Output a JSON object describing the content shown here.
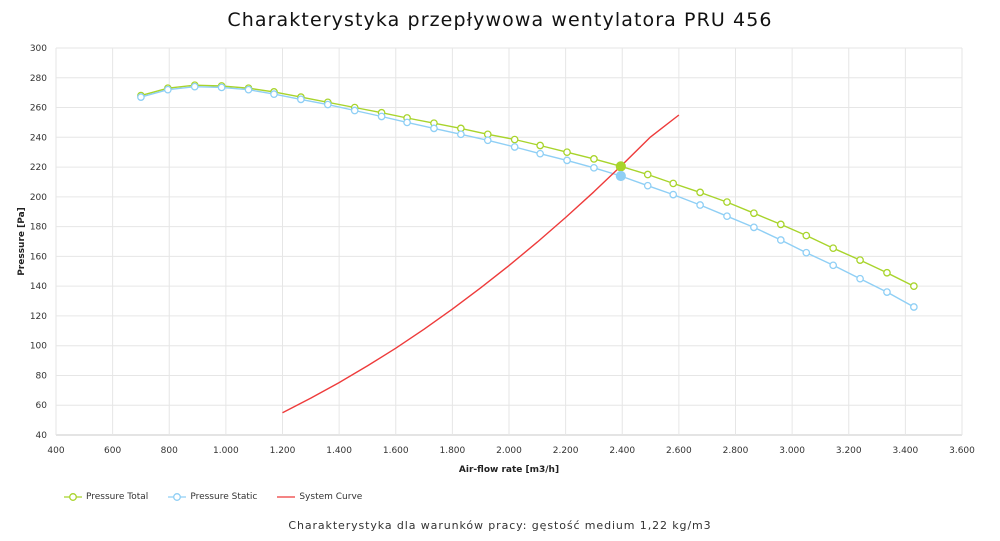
{
  "chart_data": {
    "type": "line",
    "title": "Charakterystyka przepływowa wentylatora PRU 456",
    "subtitle": "Charakterystyka dla warunków pracy: gęstość medium 1,22 kg/m3",
    "xlabel": "Air-flow rate [m3/h]",
    "ylabel": "Pressure [Pa]",
    "xlim": [
      400,
      3600
    ],
    "ylim": [
      40,
      300
    ],
    "grid": true,
    "legend_position": "bottom-left",
    "x_ticks": [
      400,
      600,
      800,
      1000,
      1200,
      1400,
      1600,
      1800,
      2000,
      2200,
      2400,
      2600,
      2800,
      3000,
      3200,
      3400,
      3600
    ],
    "x_tick_labels": [
      "400",
      "600",
      "800",
      "1.000",
      "1.200",
      "1.400",
      "1.600",
      "1.800",
      "2.000",
      "2.200",
      "2.400",
      "2.600",
      "2.800",
      "3.000",
      "3.200",
      "3.400",
      "3.600"
    ],
    "y_ticks": [
      40,
      60,
      80,
      100,
      120,
      140,
      160,
      180,
      200,
      220,
      240,
      260,
      280,
      300
    ],
    "y_tick_labels": [
      "40",
      "60",
      "80",
      "100",
      "120",
      "140",
      "160",
      "180",
      "200",
      "220",
      "240",
      "260",
      "280",
      "300"
    ],
    "x": [
      700,
      795,
      890,
      985,
      1080,
      1170,
      1265,
      1360,
      1455,
      1550,
      1640,
      1735,
      1830,
      1925,
      2020,
      2110,
      2205,
      2300,
      2395,
      2490,
      2580,
      2675,
      2770,
      2865,
      2960,
      3050,
      3145,
      3240,
      3335,
      3430
    ],
    "series": [
      {
        "name": "Pressure Total",
        "color": "#a8d42b",
        "values": [
          268,
          273,
          275,
          274.5,
          273,
          270.5,
          267,
          263.5,
          260,
          256.5,
          253,
          249.5,
          246,
          242,
          238.5,
          234.5,
          230,
          225.5,
          220.5,
          215,
          209,
          203,
          196.5,
          189,
          181.5,
          174,
          165.5,
          157.5,
          149,
          140
        ]
      },
      {
        "name": "Pressure Static",
        "color": "#8fcff5",
        "values": [
          267,
          272,
          274,
          273.5,
          272,
          269,
          265.5,
          262,
          258,
          254,
          250,
          246,
          242,
          238,
          233.5,
          229,
          224.5,
          219.5,
          214,
          207.5,
          201.5,
          194.5,
          187,
          179.5,
          171,
          162.5,
          154,
          145,
          136,
          126
        ]
      },
      {
        "name": "System Curve",
        "color": "#ee3b3b",
        "x": [
          1200,
          1300,
          1400,
          1500,
          1600,
          1700,
          1800,
          1900,
          2000,
          2100,
          2200,
          2300,
          2400,
          2500,
          2600
        ],
        "values": [
          55,
          64.8,
          75.2,
          86.4,
          98.3,
          111.1,
          124.6,
          138.9,
          153.8,
          169.6,
          186.1,
          203.4,
          221.5,
          240.3,
          255
        ]
      }
    ],
    "highlight_points": [
      {
        "series": "Pressure Total",
        "x": 2395,
        "y": 220.5
      },
      {
        "series": "Pressure Static",
        "x": 2395,
        "y": 214
      }
    ]
  }
}
